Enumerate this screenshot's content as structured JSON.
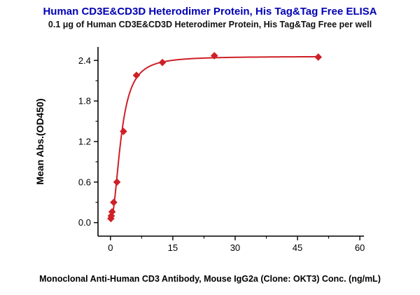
{
  "chart_data": {
    "type": "scatter",
    "title": "Human CD3E&CD3D Heterodimer Protein, His Tag&Tag Free ELISA",
    "subtitle": "0.1 μg of Human CD3E&CD3D Heterodimer Protein, His Tag&Tag Free per well",
    "xlabel": "Monoclonal Anti-Human CD3 Antibody, Mouse IgG2a (Clone: OKT3) Conc. (ng/mL)",
    "ylabel": "Mean Abs.(OD450)",
    "xlim": [
      -3,
      61
    ],
    "ylim": [
      -0.2,
      2.6
    ],
    "xticks": {
      "values": [
        0,
        15,
        30,
        45,
        60
      ],
      "labels": [
        "0",
        "15",
        "30",
        "45",
        "60"
      ],
      "minor": [
        7.5,
        22.5,
        37.5,
        52.5
      ]
    },
    "yticks": {
      "values": [
        0.0,
        0.6,
        1.2,
        1.8,
        2.4
      ],
      "labels": [
        "0.0",
        "0.6",
        "1.2",
        "1.8",
        "2.4"
      ],
      "minor": [
        0.3,
        0.9,
        1.5,
        2.1
      ]
    },
    "points": [
      [
        0.098,
        0.06
      ],
      [
        0.195,
        0.1
      ],
      [
        0.39,
        0.16
      ],
      [
        0.78,
        0.3
      ],
      [
        1.56,
        0.6
      ],
      [
        3.125,
        1.35
      ],
      [
        6.25,
        2.18
      ],
      [
        12.5,
        2.37
      ],
      [
        25,
        2.47
      ],
      [
        50,
        2.45
      ]
    ],
    "fit": {
      "model": "4PL",
      "bottom": 0.04,
      "top": 2.46,
      "ec50": 2.55,
      "hill": 2.1,
      "x_start": 0.098,
      "x_end": 50
    },
    "legend": "none",
    "grid": false,
    "colors": {
      "title": "#0000B4",
      "line": "#CE2027",
      "marker": "#CE2027",
      "axis": "#000000",
      "text": "#000000"
    }
  }
}
